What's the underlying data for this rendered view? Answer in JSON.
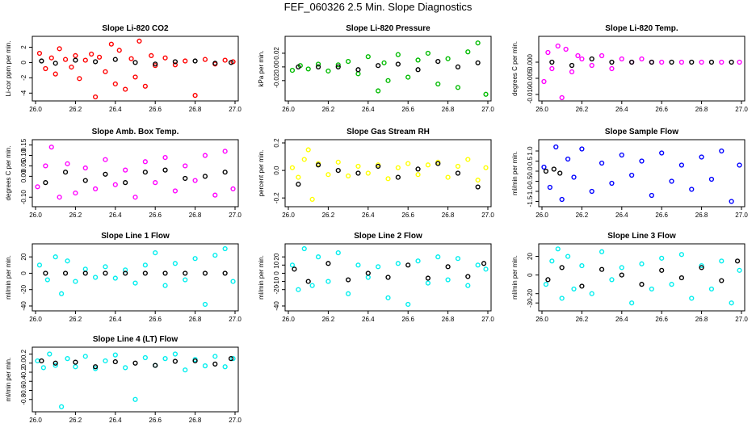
{
  "page": {
    "title": "FEF_060326  2.5 Min. Slope Diagnostics"
  },
  "colors": {
    "black": "#000000"
  },
  "chart_data": [
    {
      "type": "scatter",
      "title": "Slope Li-820 CO2",
      "ylabel": "Li-cor ppm per min.",
      "xlabel": "",
      "xlim": [
        26.0,
        27.0
      ],
      "ylim": [
        -4.6,
        3.0
      ],
      "xticks": [
        "26.0",
        "26.2",
        "26.4",
        "26.6",
        "26.8",
        "27.0"
      ],
      "yticks": [
        "-4",
        "-2",
        "0",
        "2"
      ],
      "color": "#ff0000",
      "series": [
        {
          "name": "primary",
          "x": [
            26.02,
            26.05,
            26.08,
            26.1,
            26.12,
            26.15,
            26.18,
            26.2,
            26.22,
            26.25,
            26.28,
            26.3,
            26.32,
            26.35,
            26.38,
            26.4,
            26.42,
            26.45,
            26.48,
            26.5,
            26.52,
            26.55,
            26.58,
            26.6,
            26.65,
            26.7,
            26.75,
            26.8,
            26.85,
            26.9,
            26.95,
            26.99
          ],
          "y": [
            1.2,
            -0.8,
            0.6,
            -1.5,
            1.8,
            0.4,
            -0.6,
            0.9,
            -2.1,
            0.3,
            1.1,
            -4.5,
            0.7,
            -1.2,
            2.4,
            -2.8,
            1.6,
            -3.5,
            0.5,
            -1.9,
            2.8,
            -3.1,
            0.9,
            -0.4,
            0.6,
            -0.3,
            0.2,
            -4.3,
            0.4,
            -0.2,
            0.3,
            0.1
          ]
        },
        {
          "name": "reference",
          "x": [
            26.03,
            26.1,
            26.2,
            26.3,
            26.4,
            26.5,
            26.6,
            26.7,
            26.8,
            26.9,
            26.98
          ],
          "y": [
            0.2,
            -0.1,
            0.3,
            0.1,
            0.4,
            0.0,
            -0.2,
            0.1,
            0.2,
            -0.1,
            0.0
          ]
        }
      ]
    },
    {
      "type": "scatter",
      "title": "Slope Li-820 Pressure",
      "ylabel": "kPa per min.",
      "xlabel": "",
      "xlim": [
        26.0,
        27.0
      ],
      "ylim": [
        -0.045,
        0.04
      ],
      "xticks": [
        "26.0",
        "26.2",
        "26.4",
        "26.6",
        "26.8",
        "27.0"
      ],
      "yticks": [
        "-0.02",
        "0.00",
        "0.02"
      ],
      "color": "#00bb00",
      "series": [
        {
          "name": "primary",
          "x": [
            26.02,
            26.06,
            26.1,
            26.15,
            26.2,
            26.25,
            26.3,
            26.35,
            26.4,
            26.45,
            26.48,
            26.5,
            26.55,
            26.6,
            26.65,
            26.7,
            26.75,
            26.8,
            26.85,
            26.9,
            26.95,
            26.99
          ],
          "y": [
            -0.005,
            0.002,
            -0.003,
            0.004,
            -0.006,
            0.003,
            0.008,
            -0.01,
            0.015,
            -0.035,
            0.006,
            -0.02,
            0.018,
            -0.015,
            0.01,
            0.02,
            -0.025,
            0.012,
            -0.03,
            0.022,
            0.035,
            -0.04
          ]
        },
        {
          "name": "reference",
          "x": [
            26.05,
            26.15,
            26.25,
            26.35,
            26.45,
            26.55,
            26.65,
            26.75,
            26.85,
            26.95
          ],
          "y": [
            0.0,
            0.0,
            0.0,
            -0.004,
            0.002,
            0.004,
            -0.004,
            0.008,
            0.0,
            0.006
          ]
        }
      ]
    },
    {
      "type": "scatter",
      "title": "Slope Li-820 Temp.",
      "ylabel": "degrees C per min.",
      "xlabel": "",
      "xlim": [
        26.0,
        27.0
      ],
      "ylim": [
        -0.011,
        0.007
      ],
      "xticks": [
        "26.0",
        "26.2",
        "26.4",
        "26.6",
        "26.8",
        "27.0"
      ],
      "yticks": [
        "-0.010",
        "-0.005",
        "0.000"
      ],
      "color": "#ff00ff",
      "series": [
        {
          "name": "primary",
          "x": [
            26.01,
            26.03,
            26.05,
            26.08,
            26.1,
            26.12,
            26.15,
            26.18,
            26.2,
            26.25,
            26.3,
            26.35,
            26.4,
            26.45,
            26.5,
            26.55,
            26.6,
            26.7,
            26.8,
            26.9,
            26.99
          ],
          "y": [
            -0.006,
            0.003,
            -0.002,
            0.005,
            -0.011,
            0.004,
            -0.003,
            0.002,
            0.001,
            -0.001,
            0.002,
            -0.002,
            0.001,
            0.0,
            0.001,
            0.0,
            0.0,
            0.0,
            0.0,
            0.0,
            0.0
          ]
        },
        {
          "name": "reference",
          "x": [
            26.05,
            26.15,
            26.25,
            26.35,
            26.45,
            26.55,
            26.65,
            26.75,
            26.85,
            26.95
          ],
          "y": [
            0.0,
            -0.001,
            0.001,
            0.0,
            0.0,
            0.0,
            0.0,
            0.0,
            0.0,
            0.0
          ]
        }
      ]
    },
    {
      "type": "scatter",
      "title": "Slope Amb. Box Temp.",
      "ylabel": "degrees C per min.",
      "xlabel": "",
      "xlim": [
        26.0,
        27.0
      ],
      "ylim": [
        -0.13,
        0.16
      ],
      "xticks": [
        "26.0",
        "26.2",
        "26.4",
        "26.6",
        "26.8",
        "27.0"
      ],
      "yticks": [
        "-0.10",
        "0.00",
        "0.05",
        "0.10",
        "0.15"
      ],
      "color": "#ff00ff",
      "series": [
        {
          "name": "primary",
          "x": [
            26.01,
            26.05,
            26.08,
            26.12,
            26.16,
            26.2,
            26.25,
            26.3,
            26.35,
            26.4,
            26.45,
            26.5,
            26.55,
            26.6,
            26.65,
            26.7,
            26.75,
            26.8,
            26.85,
            26.9,
            26.95,
            26.99
          ],
          "y": [
            -0.05,
            0.05,
            0.14,
            -0.1,
            0.06,
            -0.08,
            0.04,
            -0.06,
            0.08,
            -0.04,
            0.03,
            -0.1,
            0.07,
            -0.03,
            0.09,
            -0.07,
            0.05,
            -0.02,
            0.1,
            -0.09,
            0.12,
            -0.06
          ]
        },
        {
          "name": "reference",
          "x": [
            26.05,
            26.15,
            26.25,
            26.35,
            26.45,
            26.55,
            26.65,
            26.75,
            26.85,
            26.95
          ],
          "y": [
            -0.03,
            0.02,
            -0.02,
            0.01,
            -0.03,
            0.02,
            0.03,
            -0.01,
            0.0,
            0.02
          ]
        }
      ]
    },
    {
      "type": "scatter",
      "title": "Slope Gas Stream RH",
      "ylabel": "percent per min.",
      "xlabel": "",
      "xlim": [
        26.0,
        27.0
      ],
      "ylim": [
        -0.24,
        0.2
      ],
      "xticks": [
        "26.0",
        "26.2",
        "26.4",
        "26.6",
        "26.8",
        "27.0"
      ],
      "yticks": [
        "-0.2",
        "0.0",
        "0.2"
      ],
      "color": "#ffff00",
      "series": [
        {
          "name": "primary",
          "x": [
            26.02,
            26.05,
            26.08,
            26.1,
            26.12,
            26.15,
            26.2,
            26.25,
            26.3,
            26.35,
            26.4,
            26.45,
            26.5,
            26.55,
            26.6,
            26.65,
            26.7,
            26.75,
            26.8,
            26.85,
            26.9,
            26.95,
            26.99
          ],
          "y": [
            0.02,
            -0.05,
            0.08,
            0.15,
            -0.21,
            0.05,
            -0.03,
            0.06,
            -0.04,
            0.03,
            -0.02,
            0.04,
            -0.06,
            0.02,
            0.05,
            -0.03,
            0.04,
            0.06,
            -0.05,
            0.03,
            0.08,
            -0.07,
            0.02
          ]
        },
        {
          "name": "reference",
          "x": [
            26.05,
            26.15,
            26.25,
            26.35,
            26.45,
            26.55,
            26.65,
            26.75,
            26.85,
            26.95
          ],
          "y": [
            -0.1,
            0.04,
            0.0,
            -0.02,
            0.03,
            -0.05,
            0.01,
            0.05,
            -0.02,
            -0.12
          ]
        }
      ]
    },
    {
      "type": "scatter",
      "title": "Slope Sample Flow",
      "ylabel": "ml/min per min.",
      "xlabel": "",
      "xlim": [
        26.0,
        27.0
      ],
      "ylim": [
        -1.6,
        1.4
      ],
      "xticks": [
        "26.0",
        "26.2",
        "26.4",
        "26.6",
        "26.8",
        "27.0"
      ],
      "yticks": [
        "-1.5",
        "-1.0",
        "-0.5",
        "0.0",
        "0.5",
        "1.0"
      ],
      "color": "#0000ff",
      "series": [
        {
          "name": "primary",
          "x": [
            26.01,
            26.04,
            26.07,
            26.1,
            26.13,
            26.16,
            26.2,
            26.25,
            26.3,
            26.35,
            26.4,
            26.45,
            26.5,
            26.55,
            26.6,
            26.65,
            26.7,
            26.75,
            26.8,
            26.85,
            26.9,
            26.95,
            26.99
          ],
          "y": [
            0.2,
            -0.8,
            1.2,
            -1.4,
            0.6,
            -0.3,
            1.1,
            -1.0,
            0.4,
            -0.6,
            0.8,
            -0.2,
            0.5,
            -1.2,
            0.9,
            -0.5,
            0.3,
            -0.9,
            0.7,
            -0.4,
            1.0,
            -1.5,
            0.3
          ]
        },
        {
          "name": "reference",
          "x": [
            26.02,
            26.06,
            26.09
          ],
          "y": [
            0.0,
            0.1,
            -0.1
          ]
        }
      ]
    },
    {
      "type": "scatter",
      "title": "Slope Line 1 Flow",
      "ylabel": "ml/min per min.",
      "xlabel": "",
      "xlim": [
        26.0,
        27.0
      ],
      "ylim": [
        -42,
        32
      ],
      "xticks": [
        "26.0",
        "26.2",
        "26.4",
        "26.6",
        "26.8",
        "27.0"
      ],
      "yticks": [
        "-40",
        "-20",
        "0",
        "20"
      ],
      "color": "#00eeee",
      "series": [
        {
          "name": "primary",
          "x": [
            26.02,
            26.06,
            26.1,
            26.13,
            26.16,
            26.2,
            26.25,
            26.3,
            26.35,
            26.4,
            26.45,
            26.5,
            26.55,
            26.6,
            26.65,
            26.7,
            26.75,
            26.8,
            26.85,
            26.9,
            26.95,
            26.99
          ],
          "y": [
            10,
            -8,
            20,
            -25,
            15,
            -10,
            5,
            -5,
            8,
            -6,
            4,
            -12,
            10,
            25,
            -15,
            12,
            -8,
            18,
            -38,
            22,
            30,
            -10
          ]
        },
        {
          "name": "reference",
          "x": [
            26.05,
            26.15,
            26.25,
            26.35,
            26.45,
            26.55,
            26.65,
            26.75,
            26.85,
            26.95
          ],
          "y": [
            0,
            0,
            0,
            0,
            0,
            0,
            0,
            0,
            0,
            0
          ]
        }
      ]
    },
    {
      "type": "scatter",
      "title": "Slope Line 2 Flow",
      "ylabel": "ml/min per min.",
      "xlabel": "",
      "xlim": [
        26.0,
        27.0
      ],
      "ylim": [
        -42,
        32
      ],
      "xticks": [
        "26.0",
        "26.2",
        "26.4",
        "26.6",
        "26.8",
        "27.0"
      ],
      "yticks": [
        "-40",
        "-20",
        "-10",
        "0",
        "10",
        "20"
      ],
      "color": "#00eeee",
      "series": [
        {
          "name": "primary",
          "x": [
            26.02,
            26.05,
            26.08,
            26.12,
            26.15,
            26.2,
            26.25,
            26.3,
            26.35,
            26.4,
            26.45,
            26.5,
            26.55,
            26.6,
            26.65,
            26.7,
            26.75,
            26.8,
            26.85,
            26.9,
            26.95,
            26.99
          ],
          "y": [
            10,
            -20,
            30,
            -15,
            20,
            -10,
            25,
            -25,
            10,
            -5,
            8,
            -30,
            12,
            -38,
            15,
            -12,
            20,
            -8,
            18,
            -15,
            10,
            5
          ]
        },
        {
          "name": "reference",
          "x": [
            26.03,
            26.1,
            26.2,
            26.3,
            26.4,
            26.5,
            26.6,
            26.7,
            26.8,
            26.9,
            26.98
          ],
          "y": [
            5,
            -10,
            12,
            -8,
            0,
            -5,
            10,
            -6,
            8,
            -4,
            12
          ]
        }
      ]
    },
    {
      "type": "scatter",
      "title": "Slope Line 3 Flow",
      "ylabel": "ml/min per min.",
      "xlabel": "",
      "xlim": [
        26.0,
        27.0
      ],
      "ylim": [
        -35,
        30
      ],
      "xticks": [
        "26.0",
        "26.2",
        "26.4",
        "26.6",
        "26.8",
        "27.0"
      ],
      "yticks": [
        "-30",
        "-20",
        "0",
        "20"
      ],
      "color": "#00eeee",
      "series": [
        {
          "name": "primary",
          "x": [
            26.02,
            26.05,
            26.08,
            26.1,
            26.13,
            26.16,
            26.2,
            26.25,
            26.3,
            26.35,
            26.4,
            26.45,
            26.5,
            26.55,
            26.6,
            26.65,
            26.7,
            26.75,
            26.8,
            26.85,
            26.9,
            26.95,
            26.99
          ],
          "y": [
            -10,
            15,
            28,
            -25,
            20,
            -15,
            10,
            -20,
            25,
            -5,
            8,
            -30,
            12,
            -15,
            18,
            -10,
            22,
            -25,
            10,
            -15,
            15,
            -30,
            5
          ]
        },
        {
          "name": "reference",
          "x": [
            26.03,
            26.1,
            26.2,
            26.3,
            26.4,
            26.5,
            26.6,
            26.7,
            26.8,
            26.9,
            26.98
          ],
          "y": [
            -5,
            8,
            -12,
            6,
            0,
            -10,
            5,
            -3,
            8,
            -6,
            15
          ]
        }
      ]
    },
    {
      "type": "scatter",
      "title": "Slope Line 4 (LT) Flow",
      "ylabel": "ml/min per min.",
      "xlabel": "",
      "xlim": [
        26.0,
        27.0
      ],
      "ylim": [
        -1.0,
        0.28
      ],
      "xticks": [
        "26.0",
        "26.2",
        "26.4",
        "26.6",
        "26.8",
        "27.0"
      ],
      "yticks": [
        "-0.8",
        "-0.6",
        "-0.4",
        "-0.2",
        "0.0",
        "0.2"
      ],
      "color": "#00eeee",
      "series": [
        {
          "name": "primary",
          "x": [
            26.01,
            26.04,
            26.07,
            26.1,
            26.13,
            26.16,
            26.2,
            26.25,
            26.3,
            26.35,
            26.4,
            26.45,
            26.5,
            26.55,
            26.6,
            26.65,
            26.7,
            26.75,
            26.8,
            26.85,
            26.9,
            26.95,
            26.99
          ],
          "y": [
            0.05,
            -0.1,
            0.2,
            -0.05,
            -0.96,
            0.1,
            -0.08,
            0.15,
            -0.12,
            0.05,
            0.18,
            -0.1,
            -0.8,
            0.12,
            -0.05,
            0.1,
            0.2,
            -0.15,
            0.08,
            -0.06,
            0.15,
            -0.08,
            0.1
          ]
        },
        {
          "name": "reference",
          "x": [
            26.03,
            26.1,
            26.2,
            26.3,
            26.4,
            26.5,
            26.6,
            26.7,
            26.8,
            26.9,
            26.98
          ],
          "y": [
            0.05,
            0.0,
            0.02,
            -0.08,
            0.03,
            0.0,
            -0.05,
            0.04,
            0.05,
            -0.02,
            0.1
          ]
        }
      ]
    }
  ]
}
